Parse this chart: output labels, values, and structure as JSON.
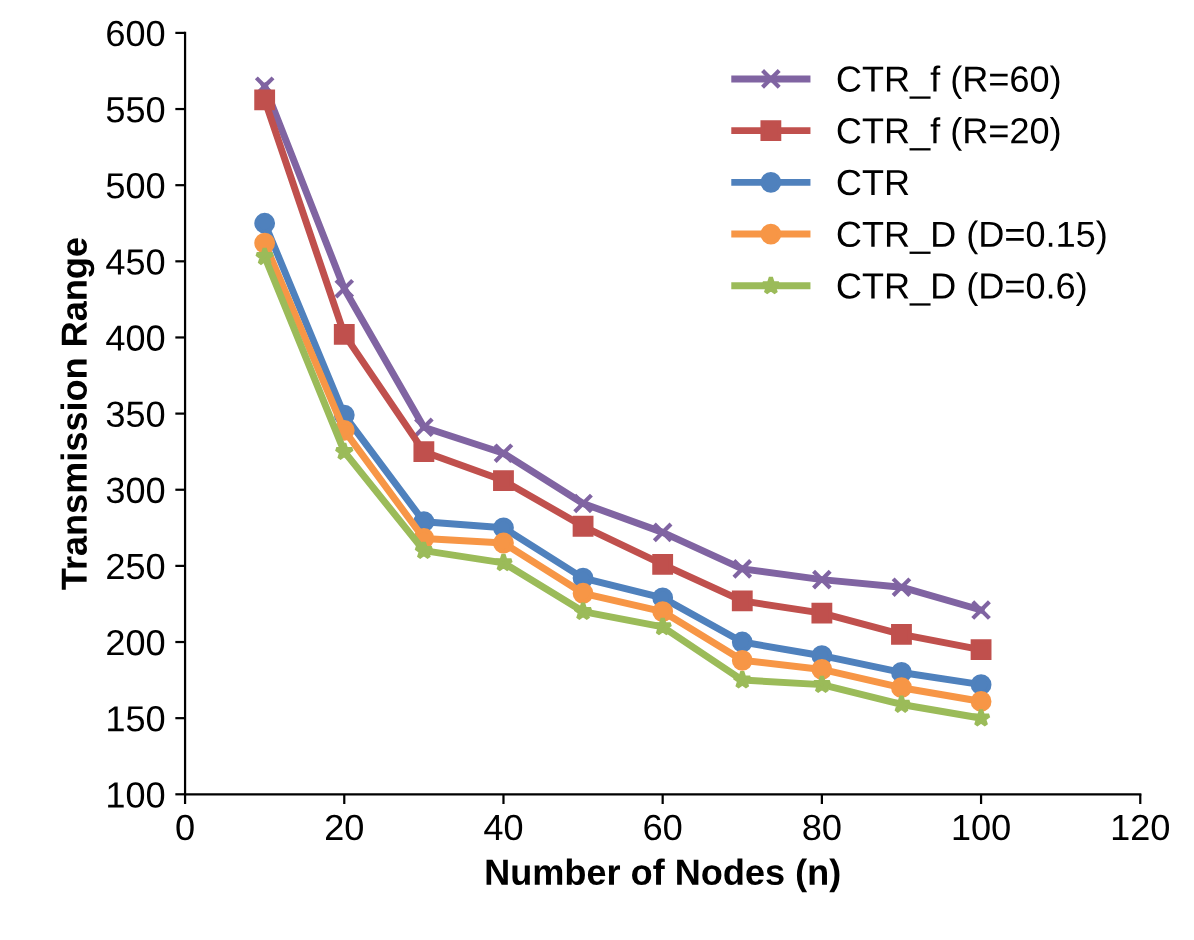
{
  "chart_data": {
    "type": "line",
    "xlabel": "Number of Nodes (n)",
    "ylabel": "Transmission Range",
    "x": [
      10,
      20,
      30,
      40,
      50,
      60,
      70,
      80,
      90,
      100
    ],
    "series": [
      {
        "name": "CTR_f (R=60)",
        "color": "#8064a2",
        "marker": "cross",
        "values": [
          565,
          432,
          341,
          324,
          291,
          272,
          248,
          241,
          236,
          221
        ]
      },
      {
        "name": "CTR_f (R=20)",
        "color": "#c0504d",
        "marker": "square",
        "values": [
          556,
          402,
          325,
          306,
          276,
          251,
          227,
          219,
          205,
          195
        ]
      },
      {
        "name": "CTR",
        "color": "#4f81bd",
        "marker": "circle",
        "values": [
          475,
          349,
          279,
          275,
          242,
          229,
          200,
          191,
          180,
          172
        ]
      },
      {
        "name": "CTR_D (D=0.15)",
        "color": "#f79646",
        "marker": "circle",
        "values": [
          462,
          339,
          268,
          265,
          232,
          220,
          188,
          182,
          170,
          161
        ]
      },
      {
        "name": "CTR_D (D=0.6)",
        "color": "#9bbb59",
        "marker": "star",
        "values": [
          453,
          325,
          260,
          252,
          220,
          210,
          175,
          172,
          159,
          150
        ]
      }
    ],
    "xlim": [
      0,
      120
    ],
    "xticks": [
      0,
      20,
      40,
      60,
      80,
      100,
      120
    ],
    "ylim": [
      100,
      600
    ],
    "yticks": [
      100,
      150,
      200,
      250,
      300,
      350,
      400,
      450,
      500,
      550,
      600
    ],
    "grid": false,
    "legend": "top right",
    "line_style": "solid"
  }
}
